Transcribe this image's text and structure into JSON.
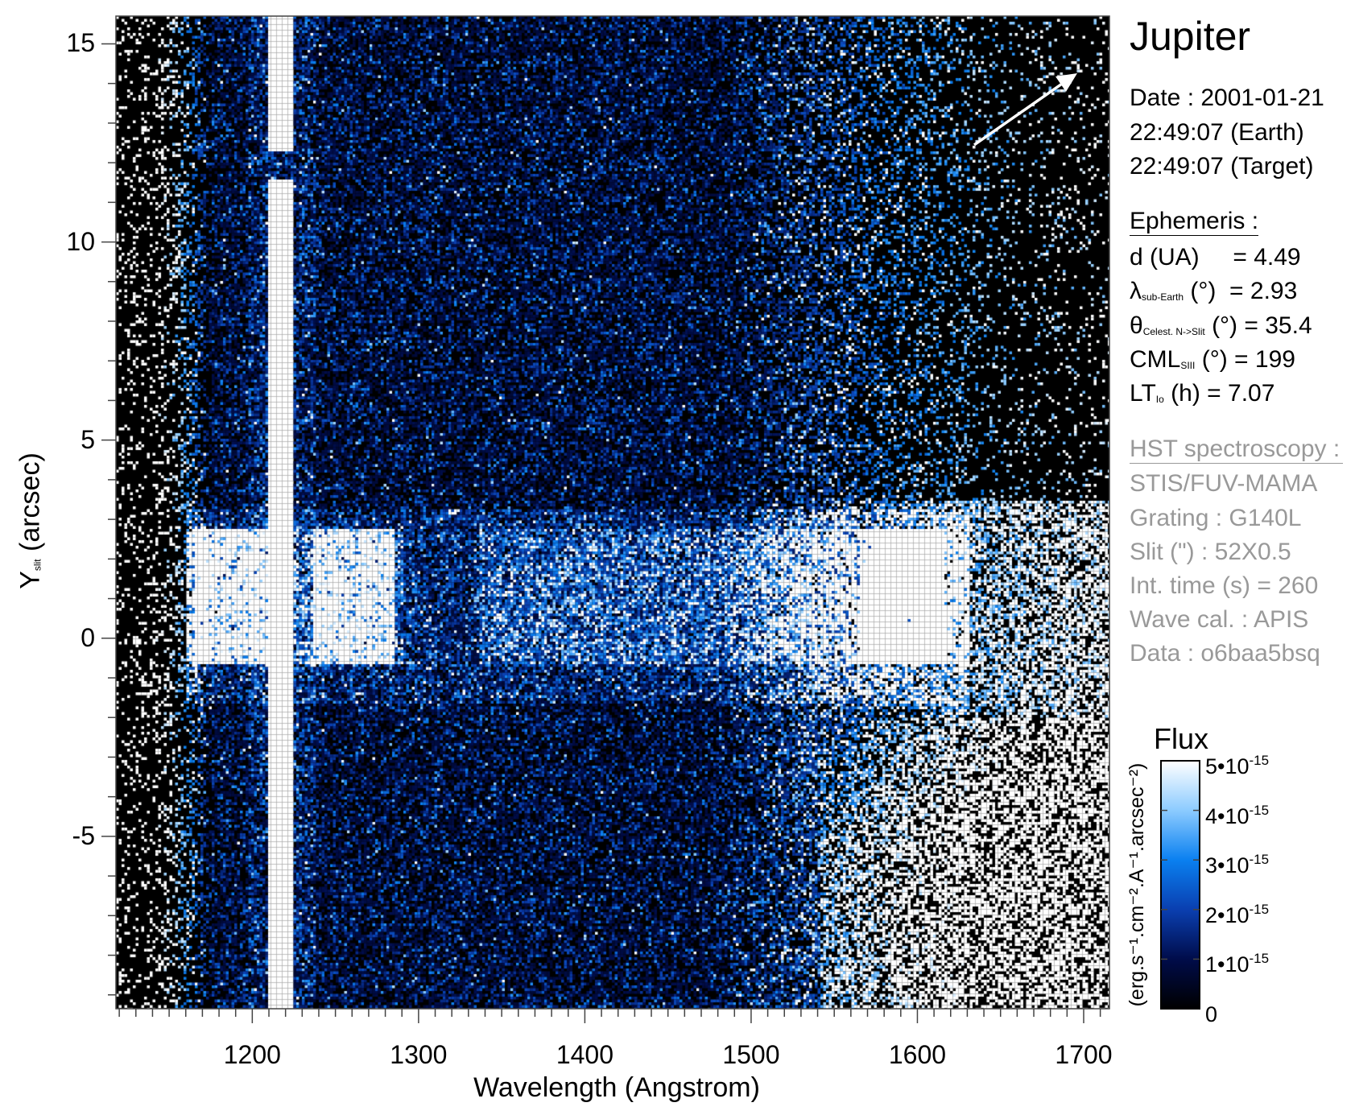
{
  "header": {
    "title": "Jupiter",
    "date_line": "Date : 2001-01-21",
    "earth_time": "22:49:07 (Earth)",
    "target_time": "22:49:07 (Target)"
  },
  "ephemeris": {
    "heading": "Ephemeris :",
    "distance": {
      "label": "d (UA)",
      "value": "= 4.49"
    },
    "lat": {
      "symbol": "λ",
      "sub": "sub-Earth",
      "unit": "(°)",
      "value": "= 2.93"
    },
    "theta": {
      "symbol": "θ",
      "sub": "Celest. N->Slit",
      "unit": "(°)",
      "value": "= 35.4"
    },
    "cml": {
      "symbol": "CML",
      "sub": "SIII",
      "unit": "(°)",
      "value": "= 199"
    },
    "lt": {
      "symbol": "LT",
      "sub": "Io",
      "unit": "(h)",
      "value": "= 7.07"
    }
  },
  "hst": {
    "heading": "HST spectroscopy :",
    "instrument": "STIS/FUV-MAMA",
    "grating": "Grating : G140L",
    "slit": "Slit (\") : 52X0.5",
    "int_time": "Int. time (s) = 260",
    "wave_cal": "Wave cal. : APIS",
    "data": "Data : o6baa5bsq"
  },
  "chart_data": {
    "type": "heatmap",
    "xlabel": "Wavelength (Angstrom)",
    "ylabel": "Y",
    "ylabel_sub": "slit",
    "ylabel_unit": "(arcsec)",
    "xlim": [
      1118,
      1715.5
    ],
    "ylim": [
      -9.35,
      15.7
    ],
    "xticks": [
      1200,
      1300,
      1400,
      1500,
      1600,
      1700
    ],
    "xtick_labels": [
      "1200",
      "1300",
      "1400",
      "1500",
      "1600",
      "1700"
    ],
    "x_minor_step": 10,
    "yticks": [
      -5,
      0,
      5,
      10,
      15
    ],
    "ytick_labels": [
      "-5",
      "0",
      "5",
      "10",
      "15"
    ],
    "y_minor_step": 1,
    "features": {
      "lyman_alpha": {
        "wavelength_range": [
          1208.7,
          1224.7
        ],
        "gap_y": [
          11.6,
          12.3
        ]
      },
      "auroral_band": {
        "wavelength_range": [
          1160,
          1630
        ],
        "y_range": [
          -0.6,
          2.8
        ]
      },
      "bright_patches": [
        [
          1165,
          1210
        ],
        [
          1235,
          1285
        ],
        [
          1565,
          1615
        ]
      ]
    },
    "colorbar": {
      "title": "Flux",
      "unit_label": "(erg.s⁻¹.cm⁻².A⁻¹.arcsec⁻²)",
      "range": [
        0,
        5e-15
      ],
      "ticks": [
        {
          "mant": "5•10",
          "exp": "-15"
        },
        {
          "mant": "4•10",
          "exp": "-15"
        },
        {
          "mant": "3•10",
          "exp": "-15"
        },
        {
          "mant": "2•10",
          "exp": "-15"
        },
        {
          "mant": "1•10",
          "exp": "-15"
        },
        {
          "mant": "0",
          "exp": ""
        }
      ],
      "colors": [
        "#000000",
        "#000c4a",
        "#0a3fb0",
        "#0a80f0",
        "#8ccbff",
        "#ffffff"
      ]
    },
    "direction_arrow": "north-east"
  }
}
